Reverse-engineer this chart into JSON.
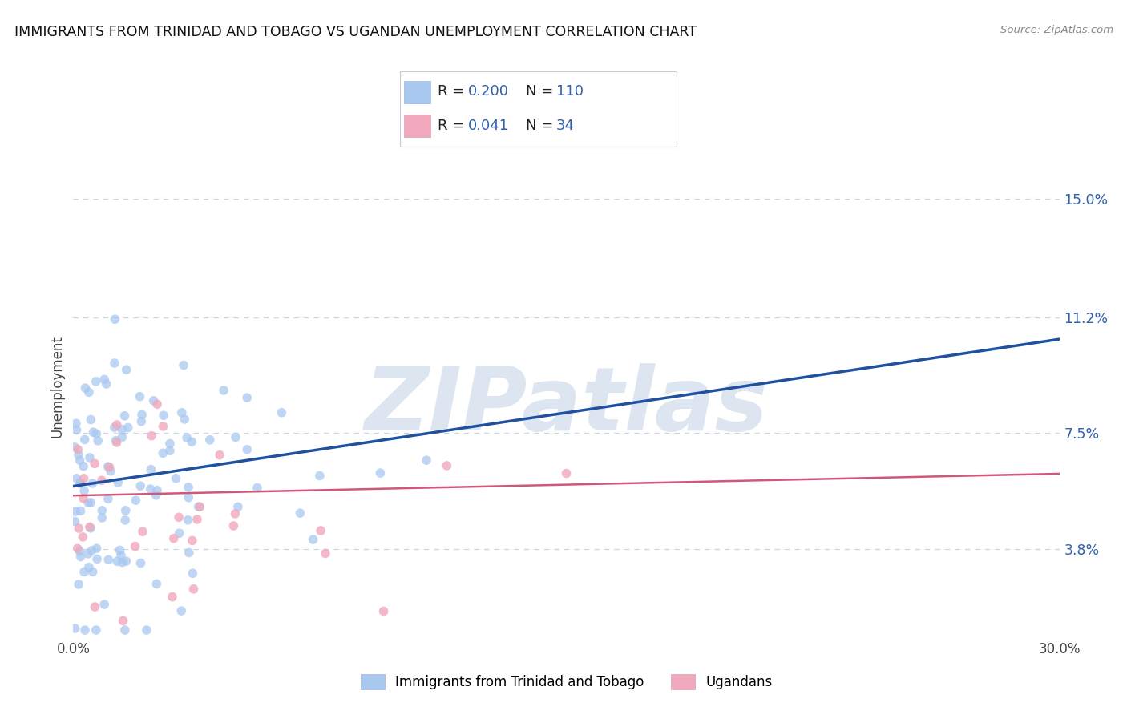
{
  "title": "IMMIGRANTS FROM TRINIDAD AND TOBAGO VS UGANDAN UNEMPLOYMENT CORRELATION CHART",
  "source": "Source: ZipAtlas.com",
  "ylabel": "Unemployment",
  "ytick_vals": [
    3.8,
    7.5,
    11.2,
    15.0
  ],
  "xlim": [
    0.0,
    30.0
  ],
  "ylim": [
    1.0,
    17.0
  ],
  "blue_R": 0.2,
  "blue_N": 110,
  "pink_R": 0.041,
  "pink_N": 34,
  "blue_scatter_color": "#a8c8f0",
  "pink_scatter_color": "#f0a8bc",
  "trend_blue_color": "#2050a0",
  "trend_pink_color": "#d05878",
  "watermark_text": "ZIPatlas",
  "watermark_color": "#dde6f0",
  "legend_label_blue": "Immigrants from Trinidad and Tobago",
  "legend_label_pink": "Ugandans",
  "background_color": "#ffffff",
  "grid_color": "#c8d4e0",
  "title_fontsize": 12.5,
  "ytick_color": "#3060b0",
  "seed": 99,
  "blue_trend_start_y": 5.8,
  "blue_trend_end_y": 10.5,
  "pink_trend_start_y": 5.5,
  "pink_trend_end_y": 6.2
}
